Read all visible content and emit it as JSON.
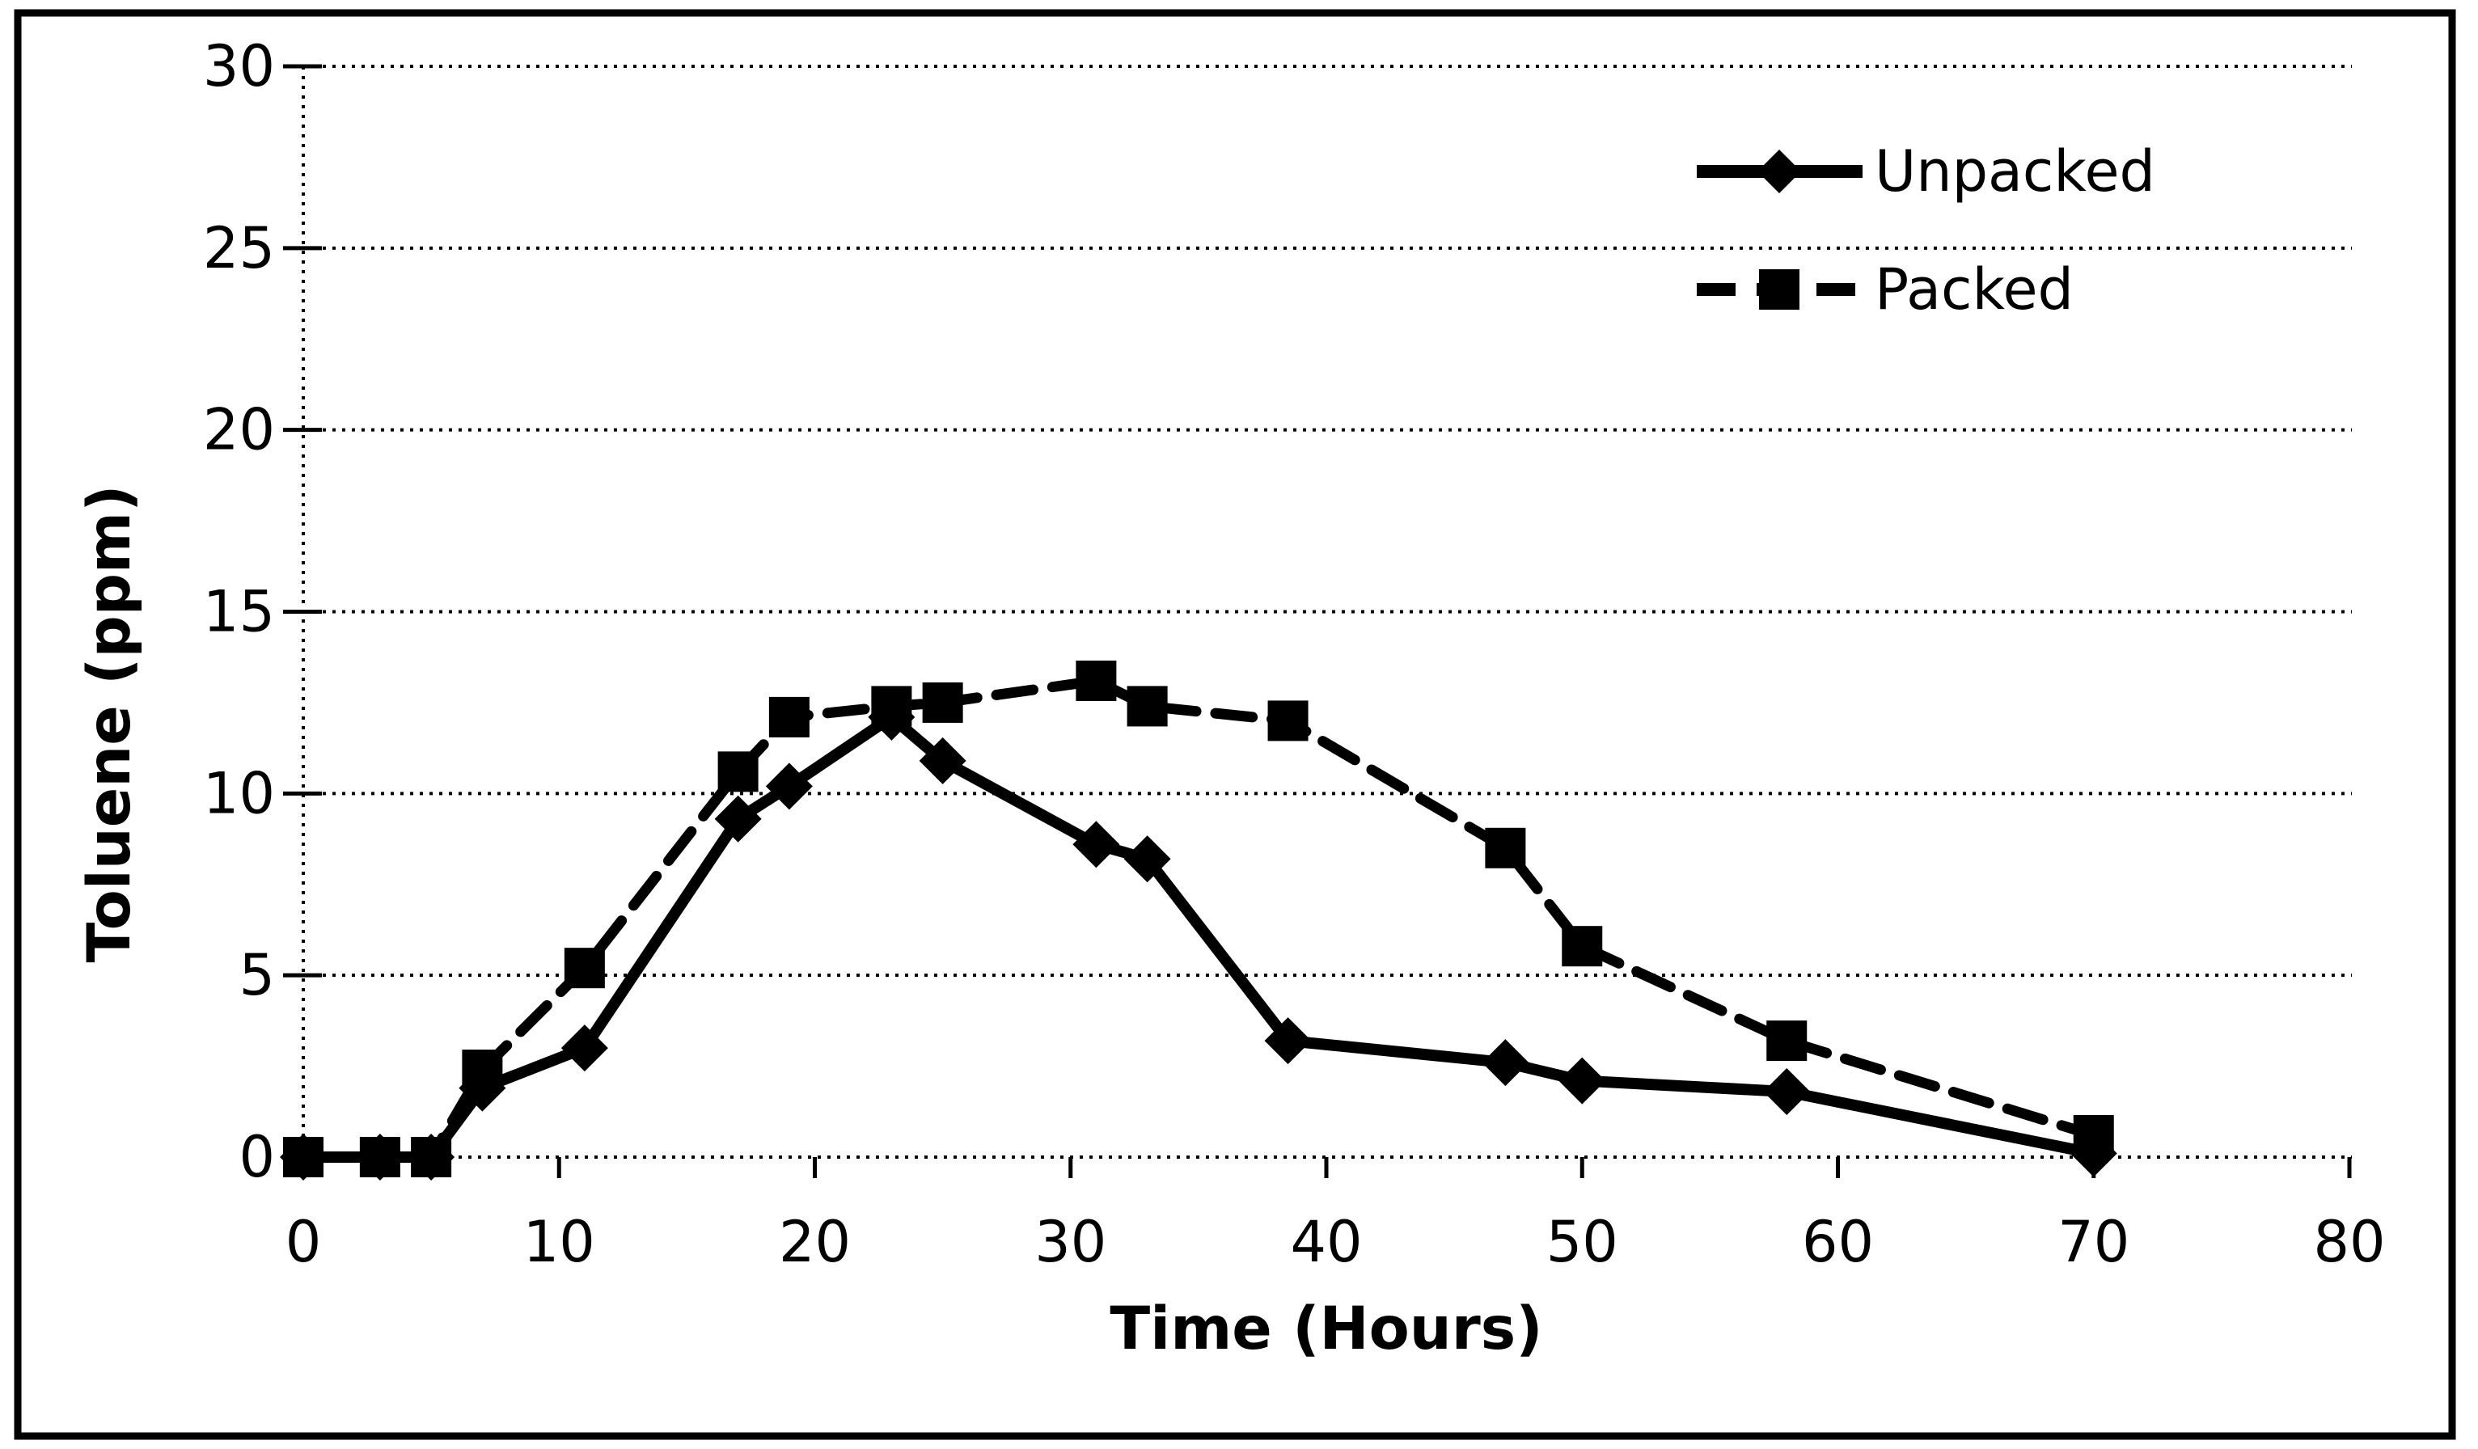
{
  "figure": {
    "background_color": "#ffffff",
    "frame_color": "#000000",
    "ink_color": "#000000"
  },
  "chart_data": {
    "type": "line",
    "title": "",
    "xlabel": "Time (Hours)",
    "ylabel": "Toluene (ppm)",
    "xlim": [
      0,
      80
    ],
    "ylim": [
      0,
      30
    ],
    "x_ticks": [
      0,
      10,
      20,
      30,
      40,
      50,
      60,
      70,
      80
    ],
    "y_ticks": [
      0,
      5,
      10,
      15,
      20,
      25,
      30
    ],
    "grid": "horizontal dotted gridlines at every y tick, dotted axis lines",
    "legend_position": "top-right inside plot, no border",
    "x": [
      0,
      3,
      5,
      7,
      11,
      17,
      19,
      23,
      25,
      31,
      33,
      38.5,
      47,
      50,
      58,
      70
    ],
    "series": [
      {
        "name": "Unpacked",
        "marker": "diamond",
        "line_style": "solid",
        "color": "#000000",
        "values": [
          0,
          0,
          0,
          1.9,
          3.0,
          9.3,
          10.2,
          12.1,
          10.9,
          8.6,
          8.2,
          3.2,
          2.6,
          2.1,
          1.8,
          0.1
        ]
      },
      {
        "name": "Packed",
        "marker": "square",
        "line_style": "dashed",
        "color": "#000000",
        "values": [
          0,
          0,
          0,
          2.4,
          5.2,
          10.6,
          12.1,
          12.4,
          12.5,
          13.1,
          12.4,
          12.0,
          8.5,
          5.8,
          3.2,
          0.6
        ]
      }
    ]
  }
}
